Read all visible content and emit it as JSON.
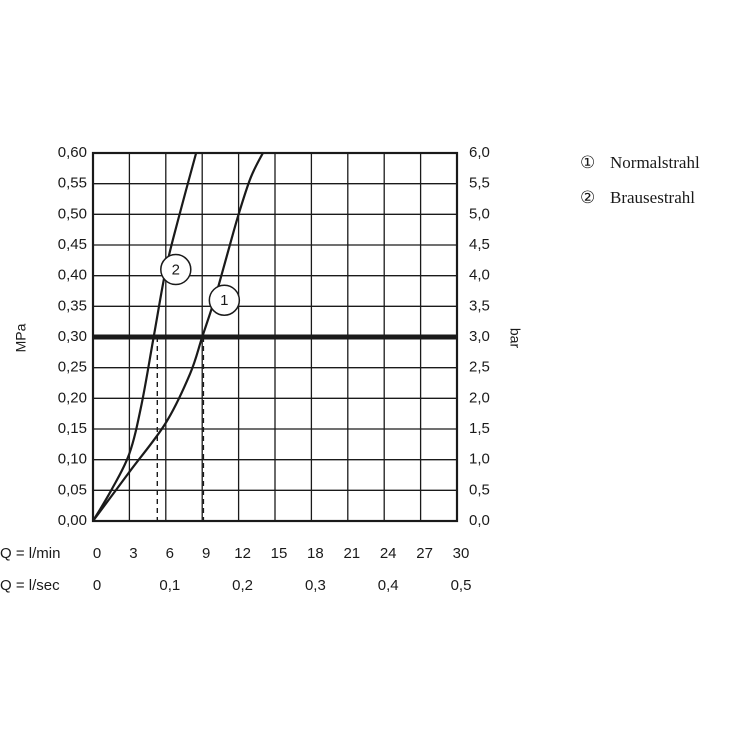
{
  "chart_data": {
    "type": "line",
    "left_axis": {
      "label": "MPa",
      "ticks": [
        "0,00",
        "0,05",
        "0,10",
        "0,15",
        "0,20",
        "0,25",
        "0,30",
        "0,35",
        "0,40",
        "0,45",
        "0,50",
        "0,55",
        "0,60"
      ],
      "range": [
        0,
        0.6
      ]
    },
    "right_axis": {
      "label": "bar",
      "ticks": [
        "0,0",
        "0,5",
        "1,0",
        "1,5",
        "2,0",
        "2,5",
        "3,0",
        "3,5",
        "4,0",
        "4,5",
        "5,0",
        "5,5",
        "6,0"
      ],
      "range": [
        0,
        6
      ]
    },
    "x_axis_lmin": {
      "label": "Q = l/min",
      "ticks": [
        "0",
        "3",
        "6",
        "9",
        "12",
        "15",
        "18",
        "21",
        "24",
        "27",
        "30"
      ],
      "range": [
        0,
        30
      ]
    },
    "x_axis_lsec": {
      "label": "Q = l/sec",
      "ticks": [
        {
          "value": 0,
          "label": "0"
        },
        {
          "value": 6,
          "label": "0,1"
        },
        {
          "value": 12,
          "label": "0,2"
        },
        {
          "value": 18,
          "label": "0,3"
        },
        {
          "value": 24,
          "label": "0,4"
        },
        {
          "value": 30,
          "label": "0,5"
        }
      ]
    },
    "grid": true,
    "reference_line": {
      "y": 0.3
    },
    "series": [
      {
        "name": "Normalstrahl",
        "marker": "1",
        "x": [
          0,
          3,
          6,
          8,
          9,
          10,
          11,
          12,
          13,
          14
        ],
        "y": [
          0,
          0.08,
          0.16,
          0.24,
          0.3,
          0.36,
          0.43,
          0.5,
          0.56,
          0.6
        ],
        "drop_at_x": 9.1
      },
      {
        "name": "Brausestrahl",
        "marker": "2",
        "x": [
          0,
          1.5,
          3,
          4,
          5,
          6,
          7,
          8.5
        ],
        "y": [
          0,
          0.05,
          0.11,
          0.19,
          0.3,
          0.41,
          0.49,
          0.6
        ],
        "drop_at_x": 5.3
      }
    ],
    "legend": {
      "position": "top-right",
      "items": [
        {
          "symbol": "①",
          "label": "Normalstrahl"
        },
        {
          "symbol": "②",
          "label": "Brausestrahl"
        }
      ]
    },
    "colors": {
      "line": "#1a1a1a",
      "grid": "#1a1a1a"
    }
  }
}
